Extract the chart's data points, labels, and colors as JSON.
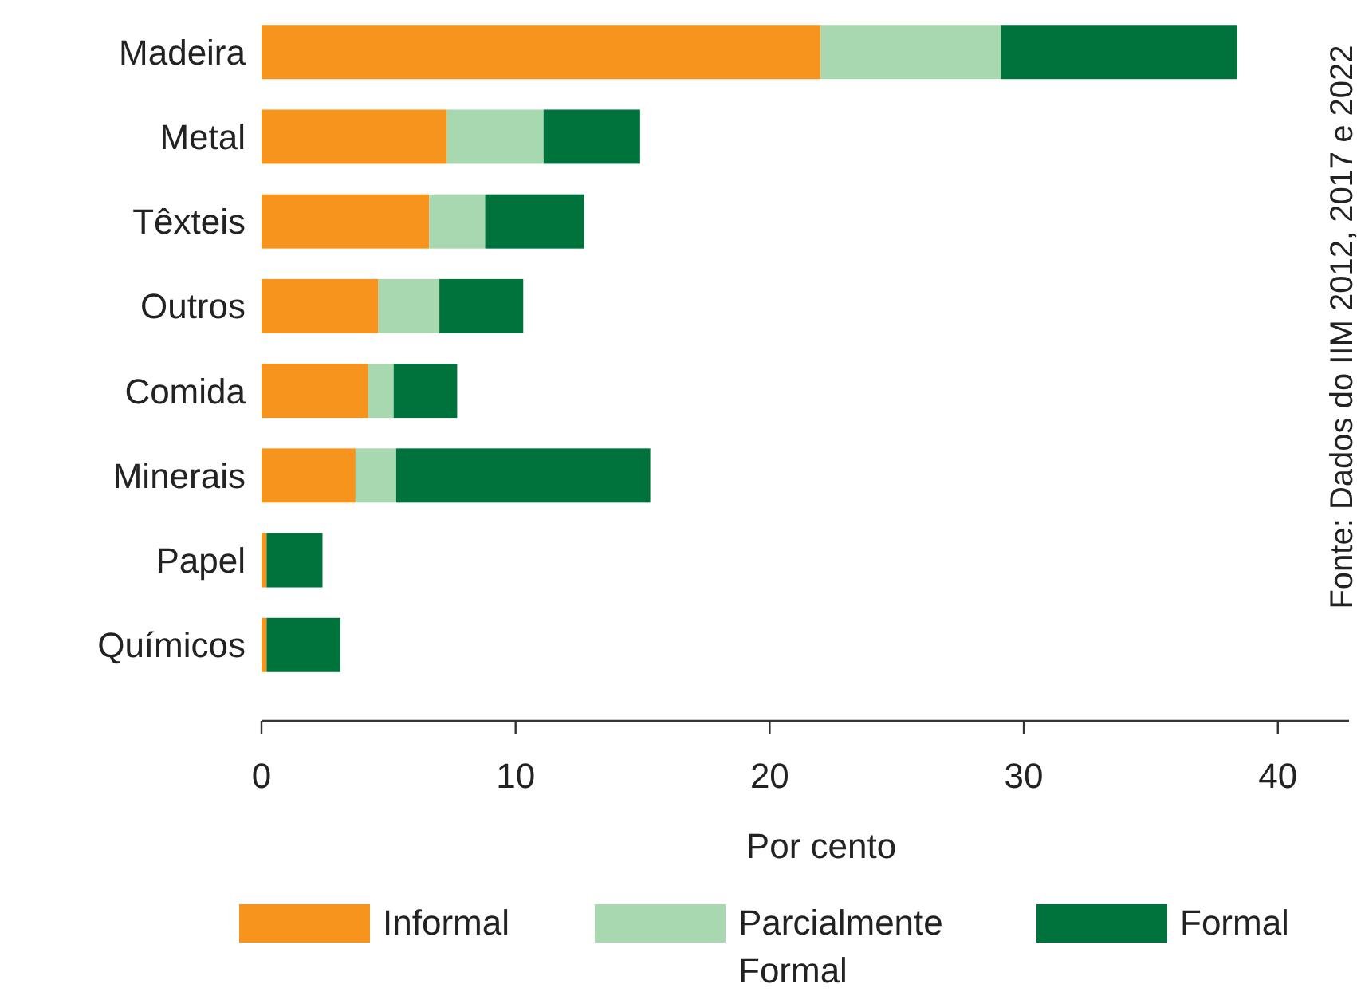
{
  "chart_data": {
    "type": "bar",
    "orientation": "horizontal",
    "stacked": true,
    "categories": [
      "Madeira",
      "Metal",
      "Têxteis",
      "Outros",
      "Comida",
      "Minerais",
      "Papel",
      "Químicos"
    ],
    "series": [
      {
        "name": "Informal",
        "color": "#f7941d",
        "values": [
          22,
          7.3,
          6.6,
          4.6,
          4.2,
          3.7,
          0.2,
          0.2
        ]
      },
      {
        "name": "Parcialmente Formal",
        "color": "#a8d8b0",
        "values": [
          7.1,
          3.8,
          2.2,
          2.4,
          1.0,
          1.6,
          0,
          0
        ]
      },
      {
        "name": "Formal",
        "color": "#00733c",
        "values": [
          9.3,
          3.8,
          3.9,
          3.3,
          2.5,
          10.0,
          2.2,
          2.9
        ]
      }
    ],
    "xlim": [
      0,
      42.8
    ],
    "xticks": [
      0,
      10,
      20,
      30,
      40
    ],
    "xlabel": "Por cento",
    "grid": false,
    "legend": "bottom",
    "annotations": [
      "Fonte: Dados do IIM 2012, 2017 e 2022"
    ]
  }
}
